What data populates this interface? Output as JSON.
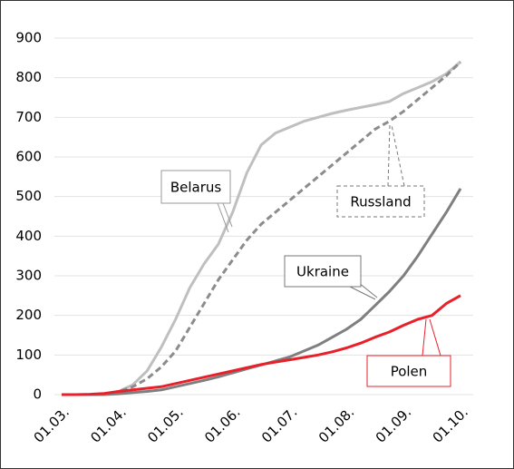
{
  "chart_data": {
    "type": "line",
    "categories": [
      "01.03.",
      null,
      null,
      null,
      "01.04.",
      null,
      null,
      null,
      "01.05.",
      null,
      null,
      null,
      "01.06.",
      null,
      null,
      null,
      "01.07.",
      null,
      null,
      null,
      "01.08.",
      null,
      null,
      null,
      "01.09.",
      null,
      null,
      null,
      "01.10."
    ],
    "series": [
      {
        "name": "Belarus",
        "color": "#bfbfbf",
        "dash": false,
        "values": [
          0,
          0,
          0,
          2,
          8,
          25,
          60,
          120,
          190,
          270,
          330,
          380,
          460,
          560,
          630,
          660,
          675,
          690,
          700,
          710,
          718,
          725,
          732,
          740,
          760,
          775,
          790,
          810,
          840
        ]
      },
      {
        "name": "Russland",
        "color": "#8c8c8c",
        "dash": true,
        "values": [
          0,
          0,
          0,
          2,
          8,
          20,
          40,
          70,
          110,
          170,
          230,
          290,
          340,
          390,
          430,
          460,
          490,
          520,
          550,
          580,
          610,
          640,
          670,
          690,
          715,
          745,
          775,
          805,
          840
        ]
      },
      {
        "name": "Ukraine",
        "color": "#7f7f7f",
        "dash": false,
        "values": [
          0,
          0,
          0,
          0,
          2,
          5,
          8,
          12,
          20,
          28,
          36,
          45,
          55,
          65,
          75,
          85,
          95,
          110,
          125,
          145,
          165,
          190,
          225,
          260,
          300,
          350,
          405,
          460,
          520
        ]
      },
      {
        "name": "Polen",
        "color": "#e8202a",
        "dash": false,
        "values": [
          0,
          0,
          1,
          3,
          8,
          12,
          16,
          20,
          28,
          36,
          44,
          52,
          60,
          68,
          76,
          82,
          88,
          94,
          100,
          108,
          118,
          130,
          145,
          158,
          175,
          190,
          200,
          230,
          250
        ]
      }
    ],
    "ylim": [
      0,
      900
    ],
    "yticks": [
      0,
      100,
      200,
      300,
      400,
      500,
      600,
      700,
      800,
      900
    ],
    "grid": true
  }
}
